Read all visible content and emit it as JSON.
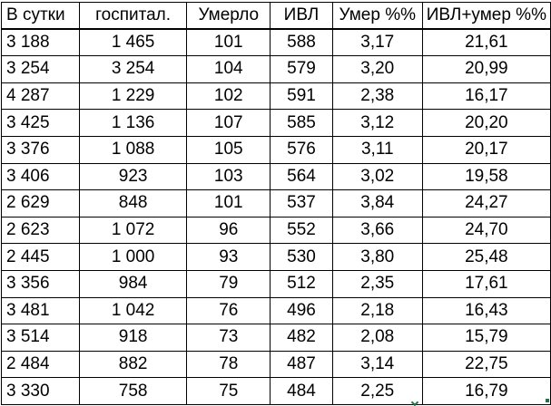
{
  "table": {
    "headers": [
      "В сутки",
      "госпитал.",
      "Умерло",
      "ИВЛ",
      "Умер %%",
      "ИВЛ+умер %%"
    ],
    "rows": [
      [
        "3 188",
        "1 465",
        "101",
        "588",
        "3,17",
        "21,61"
      ],
      [
        "3 254",
        "3 254",
        "104",
        "579",
        "3,20",
        "20,99"
      ],
      [
        "4 287",
        "1 229",
        "102",
        "591",
        "2,38",
        "16,17"
      ],
      [
        "3 425",
        "1 136",
        "107",
        "585",
        "3,12",
        "20,20"
      ],
      [
        "3 376",
        "1 088",
        "105",
        "576",
        "3,11",
        "20,17"
      ],
      [
        "3 406",
        "923",
        "103",
        "564",
        "3,02",
        "19,58"
      ],
      [
        "2 629",
        "848",
        "101",
        "537",
        "3,84",
        "24,27"
      ],
      [
        "2 623",
        "1 072",
        "96",
        "552",
        "3,66",
        "24,70"
      ],
      [
        "2 445",
        "1 000",
        "93",
        "530",
        "3,80",
        "25,48"
      ],
      [
        "3 356",
        "984",
        "79",
        "512",
        "2,35",
        "17,61"
      ],
      [
        "3 481",
        "1 042",
        "76",
        "496",
        "2,18",
        "16,43"
      ],
      [
        "3 514",
        "918",
        "73",
        "482",
        "2,08",
        "15,79"
      ],
      [
        "2 484",
        "882",
        "78",
        "487",
        "3,14",
        "22,75"
      ],
      [
        "3 330",
        "758",
        "75",
        "484",
        "2,25",
        "16,79"
      ]
    ]
  },
  "colors": {
    "border": "#000000",
    "text": "#000000",
    "selection_accent": "#217346"
  }
}
